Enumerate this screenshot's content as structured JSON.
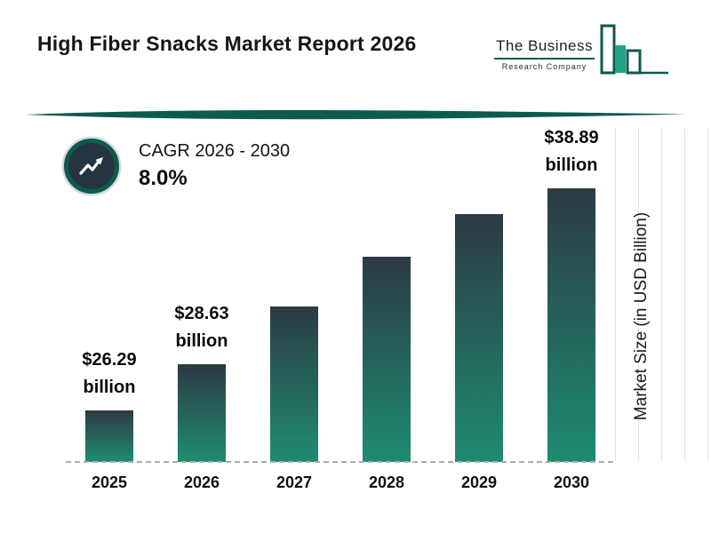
{
  "header": {
    "title": "High Fiber Snacks Market Report 2026",
    "logo": {
      "line1": "The Business",
      "line2": "Research Company"
    }
  },
  "cagr": {
    "label": "CAGR 2026 - 2030",
    "value": "8.0%"
  },
  "colors": {
    "accent_teal": "#0d5a4e",
    "bar_gradient_top": "#2c3a43",
    "bar_gradient_bottom": "#1e8c70",
    "logo_filled_bar": "#1fa184"
  },
  "chart_data": {
    "type": "bar",
    "title": "High Fiber Snacks Market Report 2026",
    "xlabel": "",
    "ylabel": "Market Size (in USD Billion)",
    "categories": [
      "2025",
      "2026",
      "2027",
      "2028",
      "2029",
      "2030"
    ],
    "values": [
      26.29,
      28.63,
      30.92,
      33.39,
      36.06,
      38.89
    ],
    "unit": "USD billion",
    "ylim": [
      23,
      40
    ],
    "legend": "none",
    "grid": "faint vertical gridlines at right edge; dashed gray baseline under bars",
    "bars": [
      {
        "year": "2025",
        "value": 26.29,
        "label_line1": "$26.29",
        "label_line2": "billion"
      },
      {
        "year": "2026",
        "value": 28.63,
        "label_line1": "$28.63",
        "label_line2": "billion"
      },
      {
        "year": "2027",
        "value": 30.92
      },
      {
        "year": "2028",
        "value": 33.39
      },
      {
        "year": "2029",
        "value": 36.06
      },
      {
        "year": "2030",
        "value": 38.89,
        "label_line1": "$38.89",
        "label_line2": "billion"
      }
    ]
  }
}
